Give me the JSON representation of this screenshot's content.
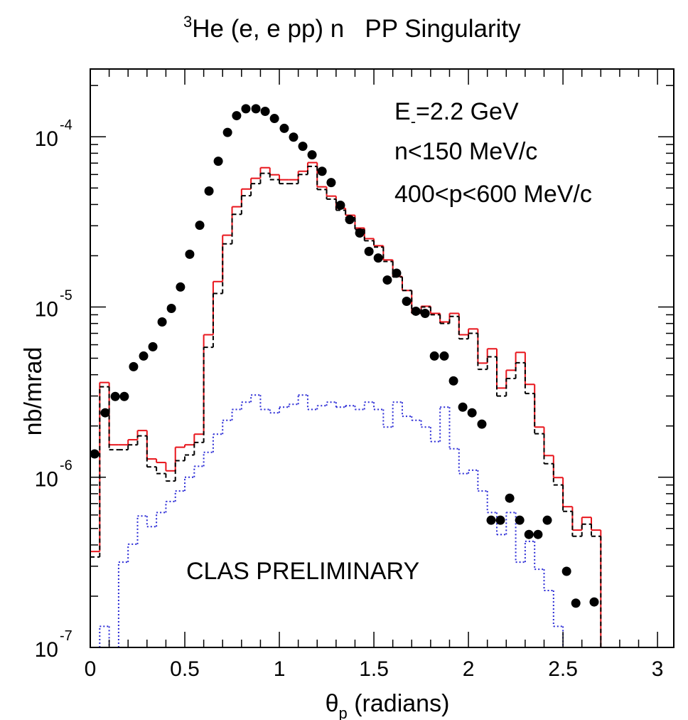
{
  "chart_data": {
    "type": "scatter",
    "title_sup": "3",
    "title": "He (e, e pp) n   PP Singularity",
    "xlabel": {
      "main": "θ",
      "sub": "p",
      "rest": " (radians)"
    },
    "ylabel": "nb/mrad",
    "energy_label": {
      "main": "E",
      "sub": "-",
      "rest": "=2.2 GeV"
    },
    "annotations": [
      "n<150 MeV/c",
      "400<p<600 MeV/c"
    ],
    "watermark": "CLAS PRELIMINARY",
    "log_y": true,
    "xlim": [
      0,
      3.086
    ],
    "ylim": [
      1e-07,
      0.00025
    ],
    "xticks": [
      0,
      0.5,
      1,
      1.5,
      2,
      2.5,
      3
    ],
    "yticks": [
      {
        "value": 1e-07,
        "label": "10",
        "sup": "-7"
      },
      {
        "value": 1e-06,
        "label": "10",
        "sup": "-6"
      },
      {
        "value": 1e-05,
        "label": "10",
        "sup": "-5"
      },
      {
        "value": 0.0001,
        "label": "10",
        "sup": "-4"
      }
    ],
    "series": [
      {
        "type": "step",
        "color": "#e8141b",
        "dash": "solid",
        "bins": [
          0,
          0.05,
          0.1,
          0.15,
          0.2,
          0.25,
          0.3,
          0.35,
          0.4,
          0.45,
          0.5,
          0.55,
          0.6,
          0.65,
          0.7,
          0.75,
          0.8,
          0.85,
          0.9,
          0.95,
          1,
          1.05,
          1.1,
          1.15,
          1.2,
          1.25,
          1.3,
          1.35,
          1.4,
          1.45,
          1.5,
          1.55,
          1.6,
          1.65,
          1.7,
          1.75,
          1.8,
          1.85,
          1.9,
          1.95,
          2,
          2.05,
          2.1,
          2.15,
          2.2,
          2.25,
          2.3,
          2.35,
          2.4,
          2.45,
          2.5,
          2.55,
          2.6,
          2.65,
          2.7
        ],
        "values": [
          3.66e-07,
          3.6e-06,
          1.55e-06,
          1.55e-06,
          1.66e-06,
          1.88e-06,
          1.28e-06,
          1.22e-06,
          1.09e-06,
          1.5e-06,
          1.55e-06,
          1.79e-06,
          6.87e-06,
          1.41e-05,
          2.64e-05,
          3.88e-05,
          4.93e-05,
          5.7e-05,
          6.58e-05,
          5.98e-05,
          5.59e-05,
          5.59e-05,
          6.27e-05,
          7.05e-05,
          5.08e-05,
          4.48e-05,
          3.8e-05,
          3.46e-05,
          2.91e-05,
          2.52e-05,
          2.29e-05,
          1.89e-05,
          1.51e-05,
          1.25e-05,
          9.17e-06,
          1.01e-05,
          9.17e-06,
          8.17e-06,
          9.17e-06,
          6.87e-06,
          7.43e-06,
          4.68e-06,
          5.68e-06,
          3.34e-06,
          4.25e-06,
          5.41e-06,
          3.51e-06,
          1.97e-06,
          1.34e-06,
          9.95e-07,
          6.71e-07,
          4.89e-07,
          5.81e-07,
          4.89e-07
        ]
      },
      {
        "type": "step",
        "color": "#000000",
        "dash": "dashed",
        "bins": [
          0,
          0.05,
          0.1,
          0.15,
          0.2,
          0.25,
          0.3,
          0.35,
          0.4,
          0.45,
          0.5,
          0.55,
          0.6,
          0.65,
          0.7,
          0.75,
          0.8,
          0.85,
          0.9,
          0.95,
          1,
          1.05,
          1.1,
          1.15,
          1.2,
          1.25,
          1.3,
          1.35,
          1.4,
          1.45,
          1.5,
          1.55,
          1.6,
          1.65,
          1.7,
          1.75,
          1.8,
          1.85,
          1.9,
          1.95,
          2,
          2.05,
          2.1,
          2.15,
          2.2,
          2.25,
          2.3,
          2.35,
          2.4,
          2.45,
          2.5,
          2.55,
          2.6,
          2.65,
          2.7
        ],
        "values": [
          3.4e-07,
          3.4e-06,
          1.45e-06,
          1.45e-06,
          1.55e-06,
          1.75e-06,
          1.15e-06,
          1.05e-06,
          9.5e-07,
          1.25e-06,
          1.35e-06,
          1.6e-06,
          5.8e-06,
          1.2e-05,
          2.35e-05,
          3.5e-05,
          4.5e-05,
          5.3e-05,
          6.1e-05,
          5.6e-05,
          5.3e-05,
          5.3e-05,
          6e-05,
          6.7e-05,
          4.9e-05,
          4.3e-05,
          3.7e-05,
          3.35e-05,
          2.85e-05,
          2.45e-05,
          2.25e-05,
          1.85e-05,
          1.5e-05,
          1.25e-05,
          9.2e-06,
          1e-05,
          9e-06,
          8e-06,
          8.8e-06,
          6.5e-06,
          7e-06,
          4.3e-06,
          5.1e-06,
          3e-06,
          3.8e-06,
          4.7e-06,
          3.1e-06,
          1.8e-06,
          1.2e-06,
          9e-07,
          6.3e-07,
          4.5e-07,
          5.3e-07,
          4.5e-07
        ]
      },
      {
        "type": "step",
        "color": "#2b2bd6",
        "dash": "dotted",
        "bins": [
          0,
          0.05,
          0.1,
          0.15,
          0.2,
          0.25,
          0.3,
          0.35,
          0.4,
          0.45,
          0.5,
          0.55,
          0.6,
          0.65,
          0.7,
          0.75,
          0.8,
          0.85,
          0.9,
          0.95,
          1,
          1.05,
          1.1,
          1.15,
          1.2,
          1.25,
          1.3,
          1.35,
          1.4,
          1.45,
          1.5,
          1.55,
          1.6,
          1.65,
          1.7,
          1.75,
          1.8,
          1.85,
          1.9,
          1.95,
          2,
          2.05,
          2.1,
          2.15,
          2.2,
          2.25,
          2.3,
          2.35,
          2.4,
          2.45,
          2.5,
          2.55,
          2.6,
          2.65,
          2.7
        ],
        "values": [
          null,
          1.33e-07,
          null,
          3.17e-07,
          4.04e-07,
          5.92e-07,
          5.12e-07,
          6.2e-07,
          7.2e-07,
          8.3e-07,
          1e-06,
          1.16e-06,
          1.4e-06,
          1.79e-06,
          2.16e-06,
          2.5e-06,
          2.76e-06,
          3.04e-06,
          2.5e-06,
          2.39e-06,
          2.58e-06,
          2.68e-06,
          3.04e-06,
          2.5e-06,
          2.63e-06,
          2.76e-06,
          2.58e-06,
          2.63e-06,
          2.5e-06,
          2.76e-06,
          2.5e-06,
          1.97e-06,
          2.76e-06,
          2.28e-06,
          2.16e-06,
          1.97e-06,
          1.62e-06,
          2.58e-06,
          1.47e-06,
          1.05e-06,
          1.1e-06,
          8.3e-07,
          6.2e-07,
          4.6e-07,
          6.2e-07,
          3.17e-07,
          4.2e-07,
          2.88e-07,
          2.16e-07,
          1.33e-07,
          null,
          null,
          null,
          null
        ]
      },
      {
        "type": "scatter",
        "color": "#000000",
        "x": [
          0.023,
          0.079,
          0.132,
          0.18,
          0.229,
          0.282,
          0.331,
          0.38,
          0.429,
          0.477,
          0.526,
          0.579,
          0.628,
          0.677,
          0.726,
          0.774,
          0.823,
          0.876,
          0.925,
          0.974,
          1.026,
          1.075,
          1.124,
          1.173,
          1.226,
          1.274,
          1.323,
          1.372,
          1.425,
          1.474,
          1.523,
          1.571,
          1.62,
          1.673,
          1.722,
          1.771,
          1.82,
          1.872,
          1.921,
          1.97,
          2.019,
          2.071,
          2.12,
          2.169,
          2.218,
          2.271,
          2.32,
          2.368,
          2.417,
          2.519,
          2.568,
          2.665
        ],
        "values": [
          1.37e-06,
          2.39e-06,
          2.98e-06,
          2.98e-06,
          4.46e-06,
          5.15e-06,
          5.84e-06,
          8.17e-06,
          9.81e-06,
          1.31e-05,
          2.04e-05,
          3.02e-05,
          4.8e-05,
          7.18e-05,
          0.000106,
          0.000133,
          0.000146,
          0.000146,
          0.000141,
          0.000128,
          0.000112,
          9.95e-05,
          8.79e-05,
          7.83e-05,
          6.27e-05,
          5.38e-05,
          3.96e-05,
          3.26e-05,
          2.72e-05,
          2.12e-05,
          1.94e-05,
          1.44e-05,
          1.58e-05,
          1.08e-05,
          9.44e-06,
          9.17e-06,
          5.15e-06,
          5.15e-06,
          3.68e-06,
          2.58e-06,
          2.39e-06,
          2.05e-06,
          5.59e-07,
          5.59e-07,
          7.53e-07,
          5.59e-07,
          4.61e-07,
          4.61e-07,
          5.59e-07,
          2.8e-07,
          1.82e-07,
          1.85e-07
        ]
      }
    ]
  }
}
